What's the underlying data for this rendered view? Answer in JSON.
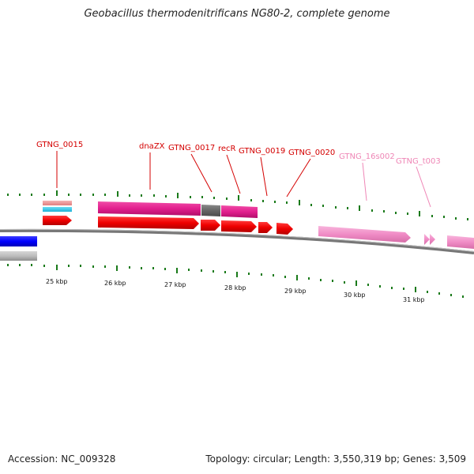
{
  "title": "Geobacillus thermodenitrificans NG80-2, complete genome",
  "accession": "Accession: NC_009328",
  "topology": "Topology: circular; Length: 3,550,319 bp; Genes: 3,509",
  "colors": {
    "gene_label_red": "#d40000",
    "rna_label_pink": "#ef86b6",
    "red_gene": "#ef0000",
    "pink_gene": "#f18ec8",
    "magenta_track": "#e21f8e",
    "gray_track": "#666666",
    "blue_track": "#0000ff",
    "tick_green": "#1a7a1a",
    "backbone": "#777777"
  },
  "genes": [
    {
      "label": "GTNG_0015"
    },
    {
      "label": "dnaZX"
    },
    {
      "label": "GTNG_0017"
    },
    {
      "label": "recR"
    },
    {
      "label": "GTNG_0019"
    },
    {
      "label": "GTNG_0020"
    },
    {
      "label": "GTNG_16s002"
    },
    {
      "label": "GTNG_t003"
    }
  ],
  "scale_ticks": [
    {
      "label": "25 kbp"
    },
    {
      "label": "26 kbp"
    },
    {
      "label": "27 kbp"
    },
    {
      "label": "28 kbp"
    },
    {
      "label": "29 kbp"
    },
    {
      "label": "30 kbp"
    },
    {
      "label": "31 kbp"
    }
  ]
}
